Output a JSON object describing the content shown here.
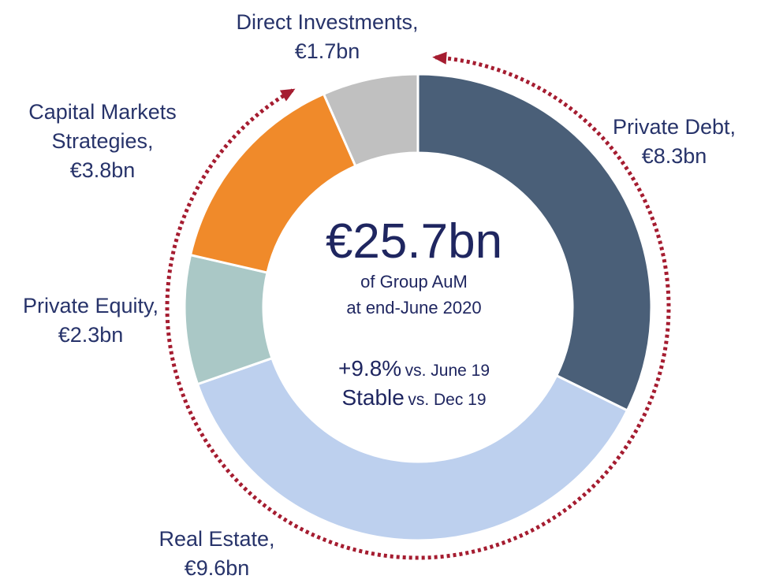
{
  "chart_data": {
    "type": "donut",
    "categories": [
      "Private Debt,",
      "Real Estate,",
      "Private Equity,",
      "Capital Markets Strategies,",
      "Direct Investments,"
    ],
    "values": [
      8.3,
      9.6,
      2.3,
      3.8,
      1.7
    ],
    "value_labels": [
      "€8.3bn",
      "€9.6bn",
      "€2.3bn",
      "€3.8bn",
      "€1.7bn"
    ],
    "colors": [
      "#4a5f78",
      "#bdd0ee",
      "#aac8c6",
      "#f08a2a",
      "#c0c0c0"
    ],
    "center_title": "€25.7bn",
    "center_subtitle": [
      "of Group AuM",
      "at end-June 2020"
    ],
    "growth": [
      {
        "value": "+9.8%",
        "label": "vs. June 19"
      },
      {
        "value": "Stable",
        "label": "vs. Dec 19"
      }
    ]
  }
}
